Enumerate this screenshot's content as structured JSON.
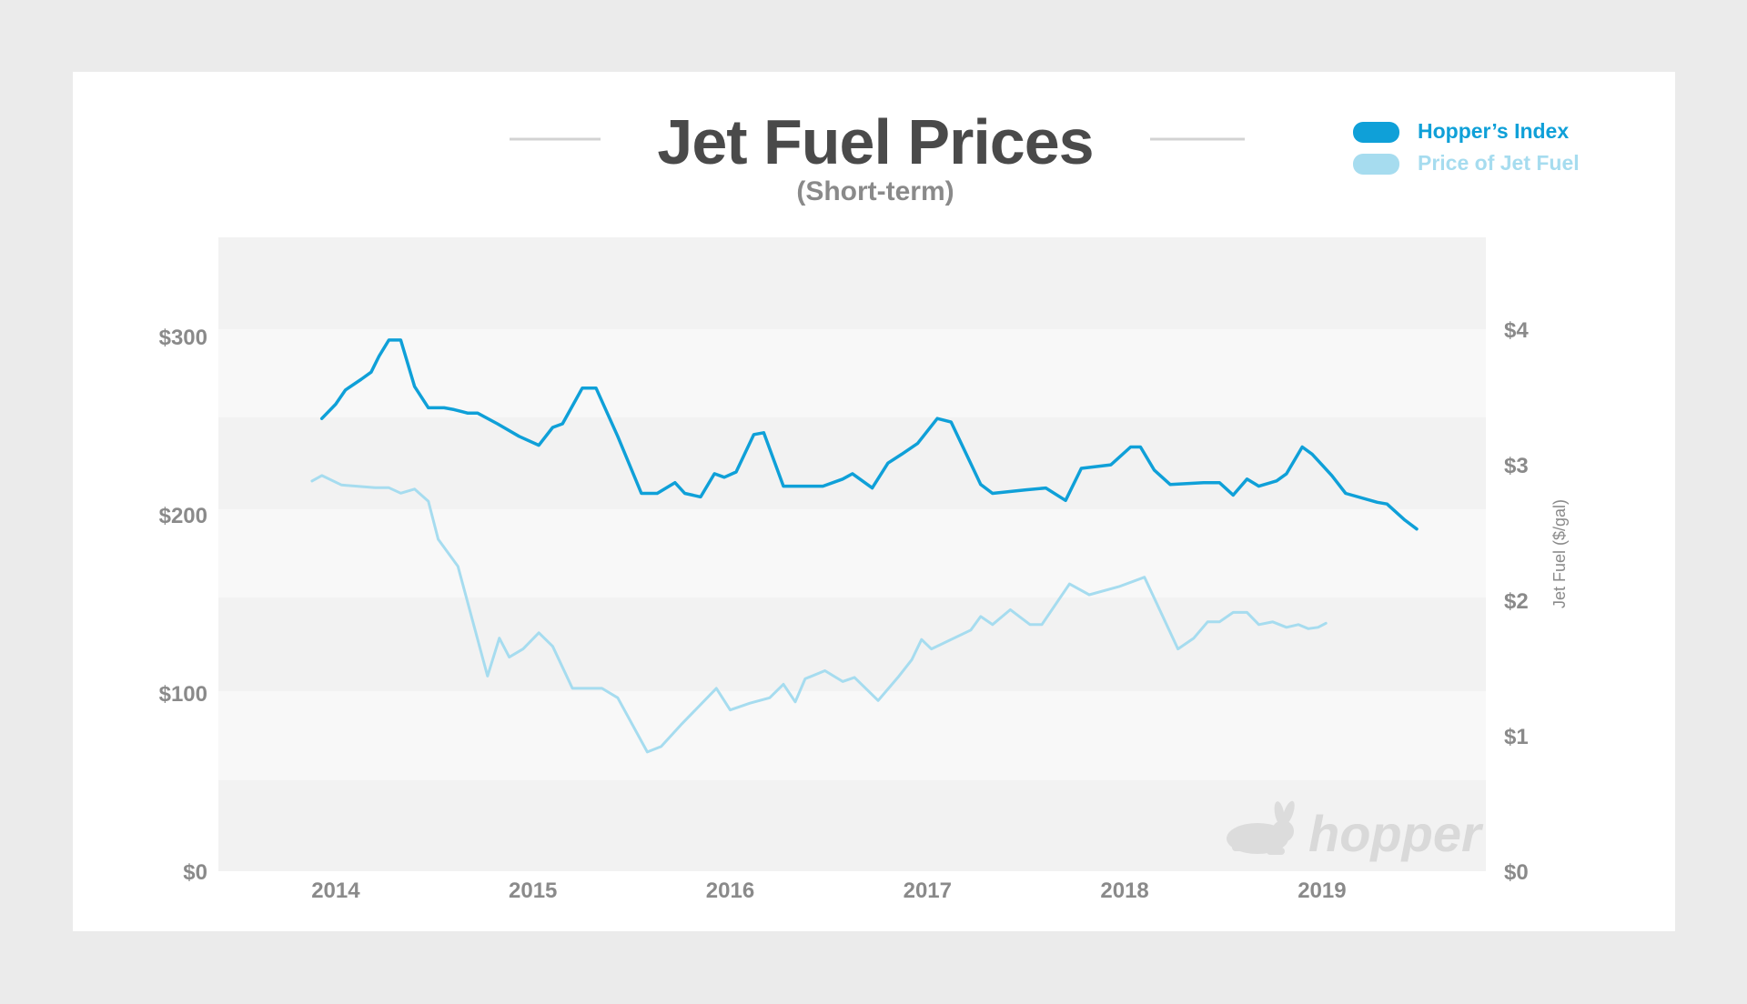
{
  "chart_data": {
    "type": "line",
    "title": "Jet Fuel Prices",
    "subtitle": "(Short-term)",
    "x_tick_labels": [
      "2014",
      "2015",
      "2016",
      "2017",
      "2018",
      "2019"
    ],
    "y_left": {
      "ticks": [
        "$0",
        "$100",
        "$200",
        "$300"
      ],
      "ylim": [
        0,
        350
      ]
    },
    "y_right": {
      "label": "Jet Fuel ($/gal)",
      "ticks": [
        "$0",
        "$1",
        "$2",
        "$3",
        "$4"
      ],
      "ylim": [
        0,
        4.5
      ]
    },
    "series": [
      {
        "name": "Hopper’s Index",
        "axis": "left",
        "color": "#0fa0d8",
        "points": [
          [
            2013.93,
            254
          ],
          [
            2014.0,
            262
          ],
          [
            2014.05,
            270
          ],
          [
            2014.13,
            276
          ],
          [
            2014.18,
            280
          ],
          [
            2014.22,
            289
          ],
          [
            2014.27,
            298
          ],
          [
            2014.33,
            298
          ],
          [
            2014.4,
            272
          ],
          [
            2014.47,
            260
          ],
          [
            2014.55,
            260
          ],
          [
            2014.6,
            259
          ],
          [
            2014.67,
            257
          ],
          [
            2014.72,
            257
          ],
          [
            2014.82,
            251
          ],
          [
            2014.93,
            244
          ],
          [
            2015.03,
            239
          ],
          [
            2015.1,
            249
          ],
          [
            2015.15,
            251
          ],
          [
            2015.25,
            271
          ],
          [
            2015.32,
            271
          ],
          [
            2015.43,
            244
          ],
          [
            2015.55,
            212
          ],
          [
            2015.63,
            212
          ],
          [
            2015.72,
            218
          ],
          [
            2015.77,
            212
          ],
          [
            2015.85,
            210
          ],
          [
            2015.92,
            223
          ],
          [
            2015.97,
            221
          ],
          [
            2016.03,
            224
          ],
          [
            2016.12,
            245
          ],
          [
            2016.17,
            246
          ],
          [
            2016.27,
            216
          ],
          [
            2016.42,
            216
          ],
          [
            2016.47,
            216
          ],
          [
            2016.57,
            220
          ],
          [
            2016.62,
            223
          ],
          [
            2016.72,
            215
          ],
          [
            2016.8,
            229
          ],
          [
            2016.87,
            234
          ],
          [
            2016.95,
            240
          ],
          [
            2017.05,
            254
          ],
          [
            2017.12,
            252
          ],
          [
            2017.27,
            217
          ],
          [
            2017.33,
            212
          ],
          [
            2017.5,
            214
          ],
          [
            2017.6,
            215
          ],
          [
            2017.7,
            208
          ],
          [
            2017.78,
            226
          ],
          [
            2017.93,
            228
          ],
          [
            2018.03,
            238
          ],
          [
            2018.08,
            238
          ],
          [
            2018.15,
            225
          ],
          [
            2018.23,
            217
          ],
          [
            2018.4,
            218
          ],
          [
            2018.48,
            218
          ],
          [
            2018.55,
            211
          ],
          [
            2018.62,
            220
          ],
          [
            2018.68,
            216
          ],
          [
            2018.77,
            219
          ],
          [
            2018.82,
            223
          ],
          [
            2018.9,
            238
          ],
          [
            2018.95,
            234
          ],
          [
            2019.05,
            222
          ],
          [
            2019.12,
            212
          ],
          [
            2019.28,
            207
          ],
          [
            2019.33,
            206
          ],
          [
            2019.42,
            197
          ],
          [
            2019.48,
            192
          ]
        ]
      },
      {
        "name": "Price of Jet Fuel",
        "axis": "right",
        "color": "#a6dcef",
        "points": [
          [
            2013.88,
            2.88
          ],
          [
            2013.93,
            2.92
          ],
          [
            2014.03,
            2.85
          ],
          [
            2014.2,
            2.83
          ],
          [
            2014.27,
            2.83
          ],
          [
            2014.33,
            2.79
          ],
          [
            2014.4,
            2.82
          ],
          [
            2014.47,
            2.73
          ],
          [
            2014.52,
            2.45
          ],
          [
            2014.62,
            2.25
          ],
          [
            2014.77,
            1.44
          ],
          [
            2014.83,
            1.72
          ],
          [
            2014.88,
            1.58
          ],
          [
            2014.95,
            1.64
          ],
          [
            2015.03,
            1.76
          ],
          [
            2015.1,
            1.66
          ],
          [
            2015.2,
            1.35
          ],
          [
            2015.35,
            1.35
          ],
          [
            2015.43,
            1.28
          ],
          [
            2015.58,
            0.88
          ],
          [
            2015.65,
            0.92
          ],
          [
            2015.75,
            1.08
          ],
          [
            2015.93,
            1.35
          ],
          [
            2016.0,
            1.19
          ],
          [
            2016.1,
            1.24
          ],
          [
            2016.2,
            1.28
          ],
          [
            2016.27,
            1.38
          ],
          [
            2016.33,
            1.25
          ],
          [
            2016.38,
            1.42
          ],
          [
            2016.48,
            1.48
          ],
          [
            2016.57,
            1.4
          ],
          [
            2016.63,
            1.43
          ],
          [
            2016.75,
            1.26
          ],
          [
            2016.85,
            1.43
          ],
          [
            2016.92,
            1.56
          ],
          [
            2016.97,
            1.71
          ],
          [
            2017.02,
            1.64
          ],
          [
            2017.22,
            1.78
          ],
          [
            2017.27,
            1.88
          ],
          [
            2017.33,
            1.82
          ],
          [
            2017.42,
            1.93
          ],
          [
            2017.52,
            1.82
          ],
          [
            2017.58,
            1.82
          ],
          [
            2017.72,
            2.12
          ],
          [
            2017.82,
            2.04
          ],
          [
            2017.97,
            2.1
          ],
          [
            2018.1,
            2.17
          ],
          [
            2018.27,
            1.64
          ],
          [
            2018.35,
            1.72
          ],
          [
            2018.42,
            1.84
          ],
          [
            2018.48,
            1.84
          ],
          [
            2018.55,
            1.91
          ],
          [
            2018.62,
            1.91
          ],
          [
            2018.68,
            1.82
          ],
          [
            2018.75,
            1.84
          ],
          [
            2018.82,
            1.8
          ],
          [
            2018.88,
            1.82
          ],
          [
            2018.93,
            1.79
          ],
          [
            2018.98,
            1.8
          ],
          [
            2019.02,
            1.83
          ]
        ]
      }
    ],
    "legend": "top-right",
    "grid": "alternating horizontal bands"
  },
  "watermark": {
    "text": "hopper",
    "icon": "rabbit-icon"
  }
}
